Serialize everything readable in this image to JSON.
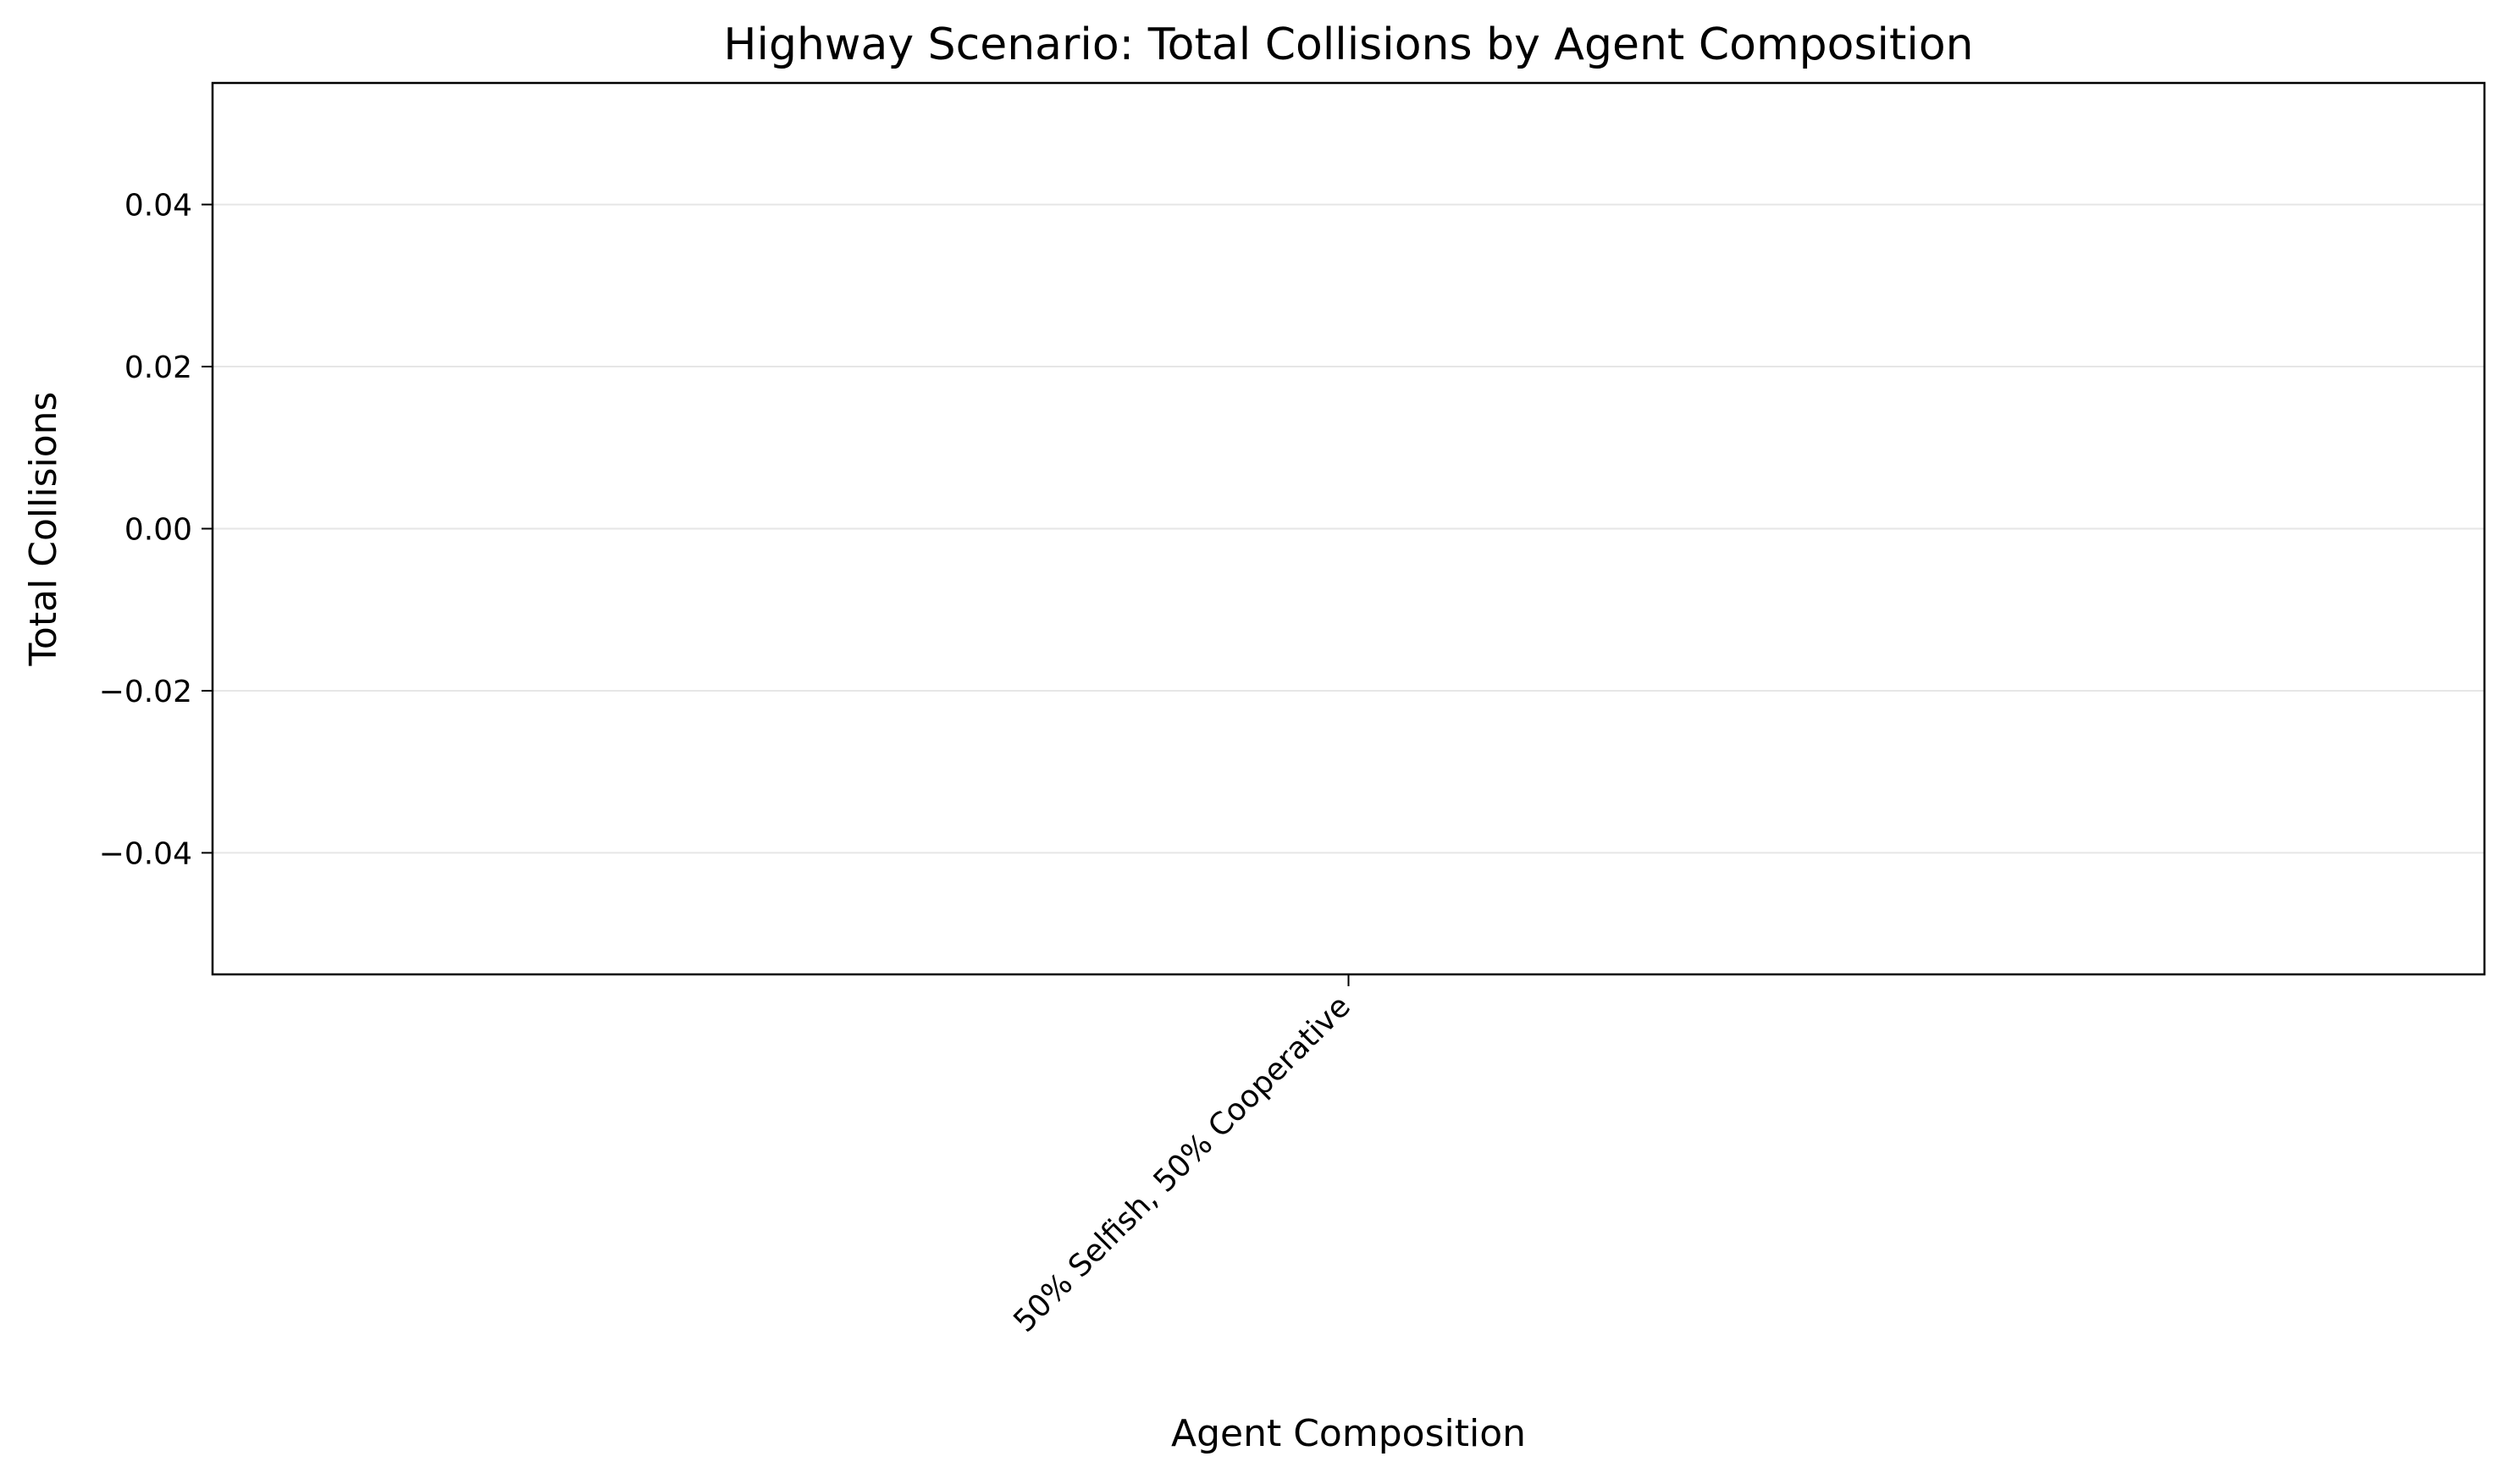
{
  "chart_data": {
    "type": "bar",
    "title": "Highway Scenario: Total Collisions by Agent Composition",
    "xlabel": "Agent Composition",
    "ylabel": "Total Collisions",
    "categories": [
      "50% Selfish, 50% Cooperative"
    ],
    "values": [
      0
    ],
    "ylim": [
      -0.055,
      0.055
    ],
    "y_ticks": [
      -0.04,
      -0.02,
      0.0,
      0.02,
      0.04
    ],
    "y_tick_labels": [
      "−0.04",
      "−0.02",
      "0.00",
      "0.02",
      "0.04"
    ],
    "grid": {
      "x": false,
      "y": true
    },
    "legend": null,
    "colors": {
      "grid": "#e6e6e6",
      "axes": "#000000",
      "text": "#000000"
    }
  }
}
